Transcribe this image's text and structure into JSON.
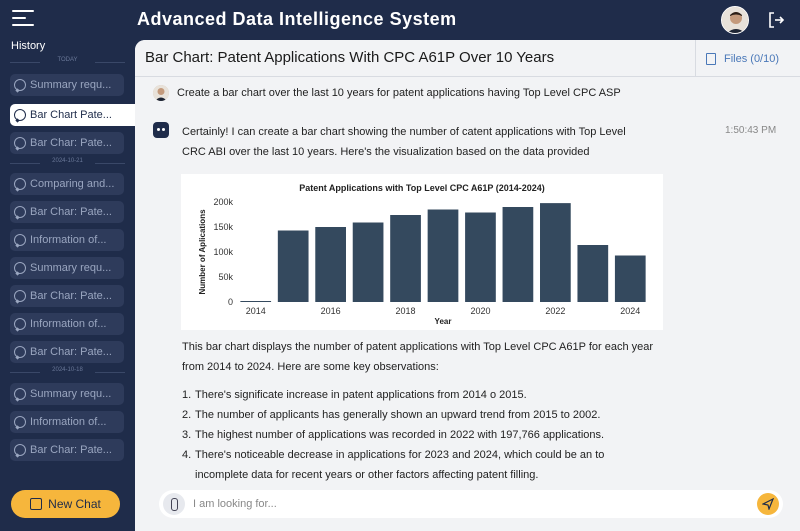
{
  "app": {
    "title": "Advanced Data Intelligence System"
  },
  "sidebar": {
    "history_label": "History",
    "date_groups": [
      "TODAY",
      "2024-10-21",
      "2024-10-18"
    ],
    "items": [
      {
        "label": "Summary requ...",
        "group": 0,
        "active": false
      },
      {
        "label": "Bar Chart Pate...",
        "group": 0,
        "active": true
      },
      {
        "label": "Bar Char: Pate...",
        "group": 0,
        "active": false
      },
      {
        "label": "Comparing and...",
        "group": 1,
        "active": false
      },
      {
        "label": "Bar Char: Pate...",
        "group": 1,
        "active": false
      },
      {
        "label": "Information of...",
        "group": 1,
        "active": false
      },
      {
        "label": "Summary requ...",
        "group": 1,
        "active": false
      },
      {
        "label": "Bar Char: Pate...",
        "group": 1,
        "active": false
      },
      {
        "label": "Information of...",
        "group": 1,
        "active": false
      },
      {
        "label": "Bar Char: Pate...",
        "group": 1,
        "active": false
      },
      {
        "label": "Summary requ...",
        "group": 2,
        "active": false
      },
      {
        "label": "Information of...",
        "group": 2,
        "active": false
      },
      {
        "label": "Bar Char: Pate...",
        "group": 2,
        "active": false
      }
    ],
    "new_chat_label": "New Chat"
  },
  "main": {
    "title": "Bar Chart: Patent Applications With CPC A61P Over 10 Years",
    "files_label": "Files (0/10)",
    "user_message": "Create a bar chart over the last 10 years for patent applications having Top Level CPC ASP",
    "bot_intro": "Certainly! I can create a bar chart showing the number of catent applications with Top Level CRC ABI over the last 10 years. Here's the visualization based on the data provided",
    "timestamp": "1:50:43 PM",
    "bot_para2": "This bar chart displays the number of patent applications with Top Level CPC A61P for each year from 2014 to 2024. Here are some key observations:",
    "observations": [
      "There's significate increase in patent applications from 2014 o 2015.",
      "The number of applicants has generally shown an upward trend from 2015 to 2002.",
      "The highest number of applications was recorded in 2022 with 197,766 applications.",
      "There's noticeable decrease in applications for 2023 and 2024, which could be an to incomplete data for recent years or other factors affecting patent filling."
    ],
    "input_placeholder": "I am looking for..."
  },
  "colors": {
    "accent": "#f6b63c",
    "nav": "#1f2c4a",
    "bar": "#34495e"
  },
  "chart_data": {
    "type": "bar",
    "title": "Patent Applications with Top Level CPC A61P (2014-2024)",
    "xlabel": "Year",
    "ylabel": "Number of Aplications",
    "categories": [
      "2014",
      "2015",
      "2016",
      "2017",
      "2018",
      "2019",
      "2020",
      "2021",
      "2022",
      "2023",
      "2024"
    ],
    "values": [
      2000,
      143000,
      150000,
      159000,
      174000,
      185000,
      179000,
      190000,
      197766,
      114000,
      93000
    ],
    "ylim": [
      0,
      200000
    ],
    "yticks": [
      0,
      50000,
      100000,
      150000,
      200000
    ],
    "ytick_labels": [
      "0",
      "50k",
      "100k",
      "150k",
      "200k"
    ],
    "xticks": [
      "2014",
      "2016",
      "2018",
      "2020",
      "2022",
      "2024"
    ]
  }
}
